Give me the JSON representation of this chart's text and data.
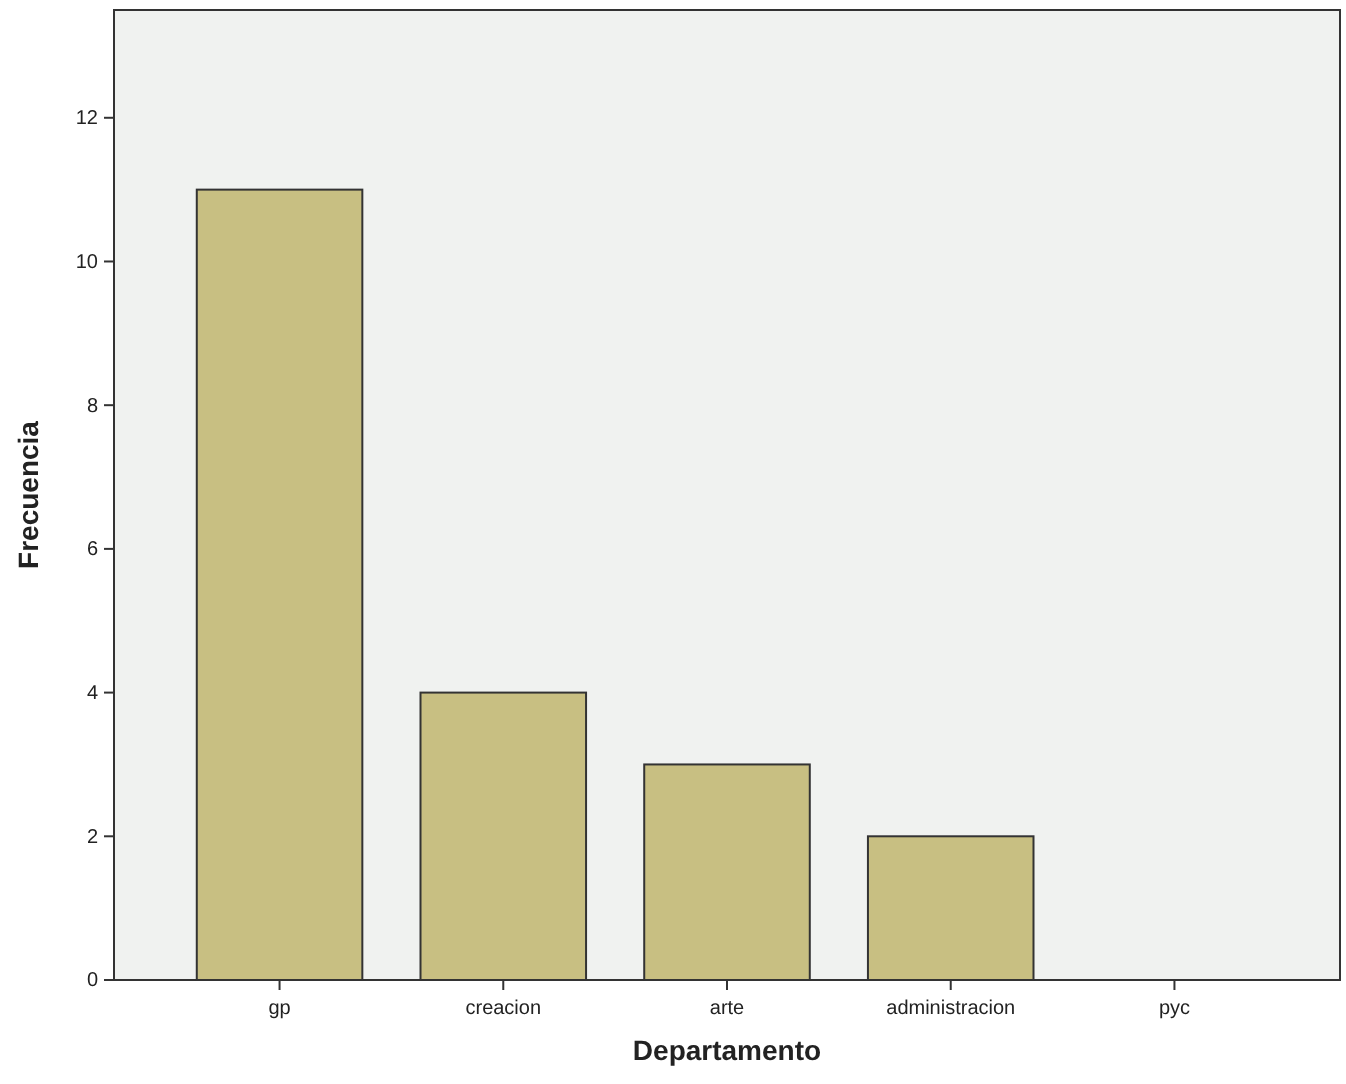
{
  "chart_data": {
    "type": "bar",
    "xlabel": "Departamento",
    "ylabel": "Frecuencia",
    "categories": [
      "gp",
      "creacion",
      "arte",
      "administracion",
      "pyc"
    ],
    "values": [
      11,
      4,
      3,
      2,
      0
    ],
    "color": "#c8bf82",
    "ylim": [
      0,
      13.5
    ],
    "yticks": [
      0,
      2,
      4,
      6,
      8,
      10,
      12
    ],
    "grid": false
  }
}
